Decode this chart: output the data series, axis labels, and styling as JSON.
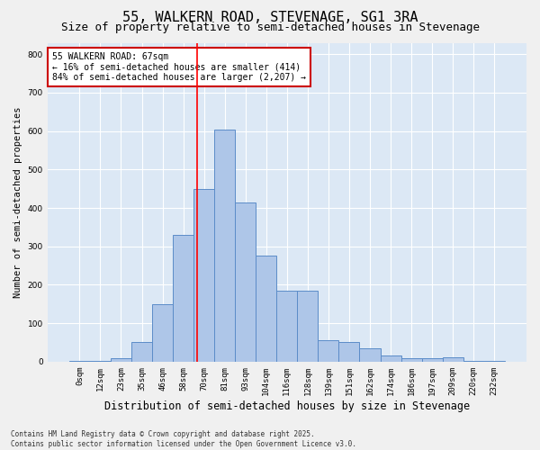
{
  "title1": "55, WALKERN ROAD, STEVENAGE, SG1 3RA",
  "title2": "Size of property relative to semi-detached houses in Stevenage",
  "xlabel": "Distribution of semi-detached houses by size in Stevenage",
  "ylabel": "Number of semi-detached properties",
  "categories": [
    "0sqm",
    "12sqm",
    "23sqm",
    "35sqm",
    "46sqm",
    "58sqm",
    "70sqm",
    "81sqm",
    "93sqm",
    "104sqm",
    "116sqm",
    "128sqm",
    "139sqm",
    "151sqm",
    "162sqm",
    "174sqm",
    "186sqm",
    "197sqm",
    "209sqm",
    "220sqm",
    "232sqm"
  ],
  "values": [
    2,
    2,
    8,
    50,
    150,
    330,
    450,
    605,
    415,
    275,
    185,
    185,
    55,
    50,
    35,
    15,
    10,
    10,
    12,
    2,
    2
  ],
  "bar_color": "#aec6e8",
  "bar_edge_color": "#5b8cc8",
  "red_line_x": 5.67,
  "annotation_text": "55 WALKERN ROAD: 67sqm\n← 16% of semi-detached houses are smaller (414)\n84% of semi-detached houses are larger (2,207) →",
  "annotation_box_color": "#ffffff",
  "annotation_box_edge": "#cc0000",
  "ylim": [
    0,
    830
  ],
  "yticks": [
    0,
    100,
    200,
    300,
    400,
    500,
    600,
    700,
    800
  ],
  "footnote": "Contains HM Land Registry data © Crown copyright and database right 2025.\nContains public sector information licensed under the Open Government Licence v3.0.",
  "bg_color": "#dce8f5",
  "grid_color": "#ffffff",
  "fig_bg_color": "#f0f0f0",
  "title1_fontsize": 11,
  "title2_fontsize": 9,
  "xlabel_fontsize": 8.5,
  "ylabel_fontsize": 7.5,
  "tick_fontsize": 6.5,
  "annot_fontsize": 7,
  "footnote_fontsize": 5.5
}
